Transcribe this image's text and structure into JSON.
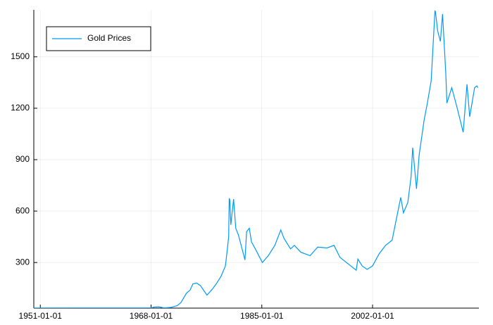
{
  "chart_data": {
    "type": "line",
    "x": [
      "1950-01-01",
      "1960-01-01",
      "1968-01-01",
      "1968-06-01",
      "1969-03-01",
      "1970-01-01",
      "1971-01-01",
      "1972-01-01",
      "1972-08-01",
      "1973-06-01",
      "1974-01-01",
      "1974-06-01",
      "1975-01-01",
      "1975-08-01",
      "1976-08-01",
      "1977-06-01",
      "1978-01-01",
      "1978-10-01",
      "1979-06-01",
      "1979-10-01",
      "1979-12-01",
      "1980-01-01",
      "1980-02-01",
      "1980-04-01",
      "1980-09-01",
      "1981-01-01",
      "1981-06-01",
      "1982-06-01",
      "1982-09-01",
      "1983-02-01",
      "1983-06-01",
      "1984-01-01",
      "1985-02-01",
      "1986-01-01",
      "1987-01-01",
      "1987-12-01",
      "1988-06-01",
      "1989-06-01",
      "1990-01-01",
      "1991-01-01",
      "1992-06-01",
      "1993-08-01",
      "1995-01-01",
      "1996-02-01",
      "1997-01-01",
      "1998-01-01",
      "1999-07-01",
      "1999-10-01",
      "2000-06-01",
      "2001-03-01",
      "2002-01-01",
      "2003-01-01",
      "2004-01-01",
      "2005-01-01",
      "2006-05-01",
      "2006-10-01",
      "2007-06-01",
      "2007-12-01",
      "2008-03-01",
      "2008-10-01",
      "2009-03-01",
      "2009-12-01",
      "2010-06-01",
      "2011-01-01",
      "2011-08-01",
      "2011-09-01",
      "2012-01-01",
      "2012-06-01",
      "2012-10-01",
      "2013-04-01",
      "2013-06-01",
      "2014-03-01",
      "2015-01-01",
      "2015-12-01",
      "2016-07-01",
      "2016-12-01",
      "2017-09-01",
      "2018-01-01",
      "2018-03-01"
    ],
    "series": [
      {
        "name": "Gold Prices",
        "color": "#009af9",
        "values": [
          34.7,
          35,
          35,
          40,
          42,
          35,
          38,
          48,
          66,
          120,
          140,
          175,
          180,
          165,
          110,
          145,
          175,
          220,
          280,
          390,
          450,
          675,
          665,
          520,
          670,
          500,
          460,
          315,
          480,
          500,
          420,
          380,
          300,
          340,
          400,
          490,
          440,
          380,
          400,
          360,
          340,
          390,
          385,
          400,
          330,
          300,
          255,
          320,
          280,
          260,
          280,
          350,
          400,
          430,
          680,
          590,
          650,
          800,
          970,
          730,
          930,
          1130,
          1230,
          1360,
          1770,
          1760,
          1650,
          1590,
          1750,
          1400,
          1230,
          1320,
          1200,
          1060,
          1340,
          1150,
          1320,
          1330,
          1320
        ]
      }
    ],
    "xlim": [
      "1950-01-01",
      "2018-05-01"
    ],
    "xticks": [
      "1951-01-01",
      "1968-01-01",
      "1985-01-01",
      "2002-01-01"
    ],
    "ylim": [
      34,
      1774
    ],
    "yticks": [
      300,
      600,
      900,
      1200,
      1500
    ],
    "grid": true,
    "legend": "top-left"
  }
}
